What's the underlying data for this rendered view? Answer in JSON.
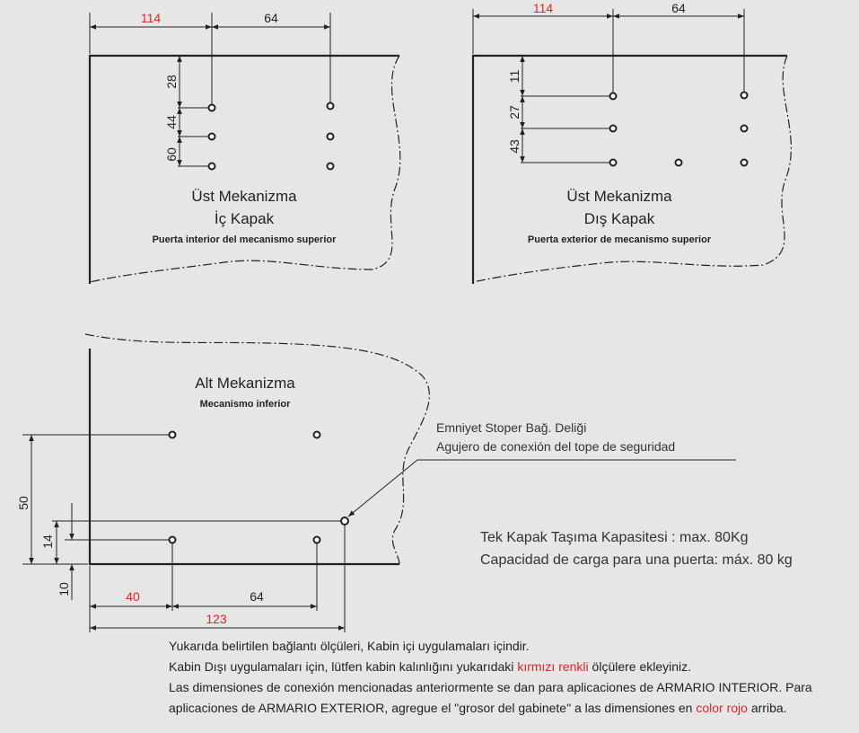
{
  "colors": {
    "dimension_red": "#e02424",
    "ink": "#222222",
    "background": "#e6e6e6"
  },
  "top_left": {
    "dim_red_width": "114",
    "dim_hole_spacing": "64",
    "dim_v": [
      "28",
      "44",
      "60"
    ],
    "title_line1": "Üst Mekanizma",
    "title_line2": "İç Kapak",
    "subtitle": "Puerta interior del mecanismo superior"
  },
  "top_right": {
    "dim_red_width": "114",
    "dim_hole_spacing": "64",
    "dim_v": [
      "11",
      "27",
      "43"
    ],
    "title_line1": "Üst Mekanizma",
    "title_line2": "Dış Kapak",
    "subtitle": "Puerta exterior de mecanismo superior"
  },
  "bottom": {
    "title": "Alt Mekanizma",
    "subtitle": "Mecanismo inferior",
    "dim_50": "50",
    "dim_14": "14",
    "dim_10": "10",
    "dim_red_40": "40",
    "dim_64": "64",
    "dim_red_123": "123",
    "callout_tr": "Emniyet Stoper Bağ. Deliği",
    "callout_es": "Agujero de conexión del tope de seguridad"
  },
  "capacity": {
    "tr": "Tek Kapak Taşıma Kapasitesi : max. 80Kg",
    "es": "Capacidad de carga para una puerta: máx. 80 kg"
  },
  "notes": {
    "line1": "Yukarıda belirtilen bağlantı ölçüleri, Kabin içi uygulamaları içindir.",
    "line2_a": "Kabin Dışı uygulamaları için, lütfen kabin kalınlığını yukarıdaki ",
    "line2_red": "kırmızı renkli",
    "line2_b": " ölçülere ekleyiniz.",
    "line3": "Las dimensiones de conexión mencionadas anteriormente se dan para aplicaciones de ARMARIO INTERIOR. Para",
    "line4_a": "aplicaciones de ARMARIO EXTERIOR, agregue el \"grosor del gabinete\" a las dimensiones en ",
    "line4_red": "color rojo",
    "line4_b": " arriba."
  }
}
